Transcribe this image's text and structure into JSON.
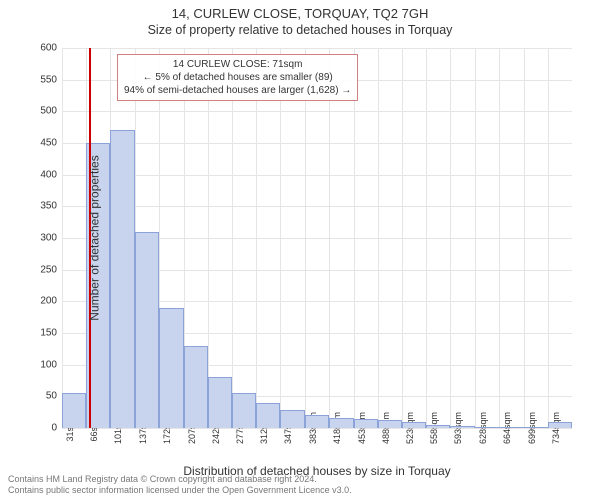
{
  "header": {
    "title": "14, CURLEW CLOSE, TORQUAY, TQ2 7GH",
    "subtitle": "Size of property relative to detached houses in Torquay"
  },
  "chart": {
    "type": "histogram",
    "y_axis_label": "Number of detached properties",
    "x_axis_label": "Distribution of detached houses by size in Torquay",
    "ylim": [
      0,
      600
    ],
    "y_ticks": [
      0,
      50,
      100,
      150,
      200,
      250,
      300,
      350,
      400,
      450,
      500,
      550,
      600
    ],
    "x_ticks": [
      "31sqm",
      "66sqm",
      "101sqm",
      "137sqm",
      "172sqm",
      "207sqm",
      "242sqm",
      "277sqm",
      "312sqm",
      "347sqm",
      "383sqm",
      "418sqm",
      "453sqm",
      "488sqm",
      "523sqm",
      "558sqm",
      "593sqm",
      "628sqm",
      "664sqm",
      "699sqm",
      "734sqm"
    ],
    "bins": [
      {
        "x": 31,
        "count": 55
      },
      {
        "x": 66,
        "count": 450
      },
      {
        "x": 101,
        "count": 470
      },
      {
        "x": 137,
        "count": 310
      },
      {
        "x": 172,
        "count": 190
      },
      {
        "x": 207,
        "count": 130
      },
      {
        "x": 242,
        "count": 80
      },
      {
        "x": 277,
        "count": 55
      },
      {
        "x": 312,
        "count": 40
      },
      {
        "x": 347,
        "count": 28
      },
      {
        "x": 383,
        "count": 20
      },
      {
        "x": 418,
        "count": 16
      },
      {
        "x": 453,
        "count": 14
      },
      {
        "x": 488,
        "count": 12
      },
      {
        "x": 523,
        "count": 10
      },
      {
        "x": 558,
        "count": 5
      },
      {
        "x": 593,
        "count": 3
      },
      {
        "x": 628,
        "count": 2
      },
      {
        "x": 664,
        "count": 2
      },
      {
        "x": 699,
        "count": 2
      },
      {
        "x": 734,
        "count": 10
      }
    ],
    "bar_fill": "#c8d4ee",
    "bar_stroke": "#8ca3d9",
    "background_color": "#ffffff",
    "grid_color": "#e5e5e5",
    "marker": {
      "value": 71,
      "color": "#cc0000"
    },
    "annotation": {
      "border_color": "#d08080",
      "lines": [
        "14 CURLEW CLOSE: 71sqm",
        "← 5% of detached houses are smaller (89)",
        "94% of semi-detached houses are larger (1,628) →"
      ]
    },
    "plot_x_range": [
      31,
      769
    ],
    "label_fontsize": 12,
    "tick_fontsize": 10
  },
  "footer": {
    "line1": "Contains HM Land Registry data © Crown copyright and database right 2024.",
    "line2": "Contains public sector information licensed under the Open Government Licence v3.0."
  }
}
